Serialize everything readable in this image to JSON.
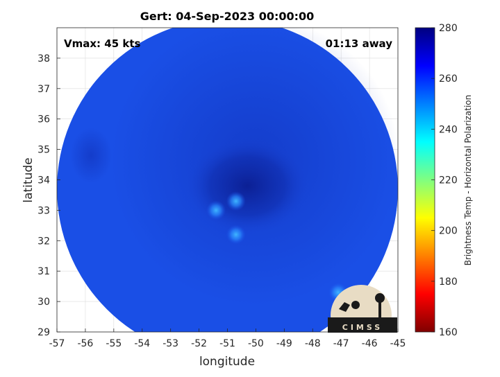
{
  "chart_data": {
    "type": "heatmap",
    "title": "Gert: 04-Sep-2023 00:00:00",
    "xlabel": "longitude",
    "ylabel": "latitude",
    "xlim": [
      -57,
      -45
    ],
    "ylim": [
      29,
      39
    ],
    "x_ticks": [
      -57,
      -56,
      -55,
      -54,
      -53,
      -52,
      -51,
      -50,
      -49,
      -48,
      -47,
      -46,
      -45
    ],
    "y_ticks": [
      29,
      30,
      31,
      32,
      33,
      34,
      35,
      36,
      37,
      38
    ],
    "grid": true,
    "annotations": {
      "vmax": "Vmax: 45 kts",
      "time_away": "01:13 away"
    },
    "colorbar": {
      "label": "Brightness Temp - Horizontal Polarization",
      "range": [
        160,
        280
      ],
      "ticks": [
        160,
        180,
        200,
        220,
        240,
        260,
        280
      ],
      "colormap": [
        "#800000",
        "#ff0000",
        "#ff8000",
        "#ffff00",
        "#80ff80",
        "#00ffff",
        "#0080ff",
        "#0000ff",
        "#000080"
      ]
    },
    "swath": {
      "center_lon": -51,
      "center_lat": 33.7,
      "radius_deg_lon": 6,
      "background_value": 262,
      "color": "#1a4fe6"
    },
    "features": [
      {
        "name": "eye core",
        "lon": -50.6,
        "lat": 34.1,
        "value": 270
      },
      {
        "name": "warm spot",
        "lon": -50.7,
        "lat": 33.3,
        "value": 243
      },
      {
        "name": "warm spot",
        "lon": -51.4,
        "lat": 33.0,
        "value": 246
      },
      {
        "name": "warm spot",
        "lon": -50.7,
        "lat": 32.2,
        "value": 249
      },
      {
        "name": "warm spot",
        "lon": -47.1,
        "lat": 30.3,
        "value": 248
      }
    ]
  },
  "logo": {
    "text": "CIMSS"
  }
}
